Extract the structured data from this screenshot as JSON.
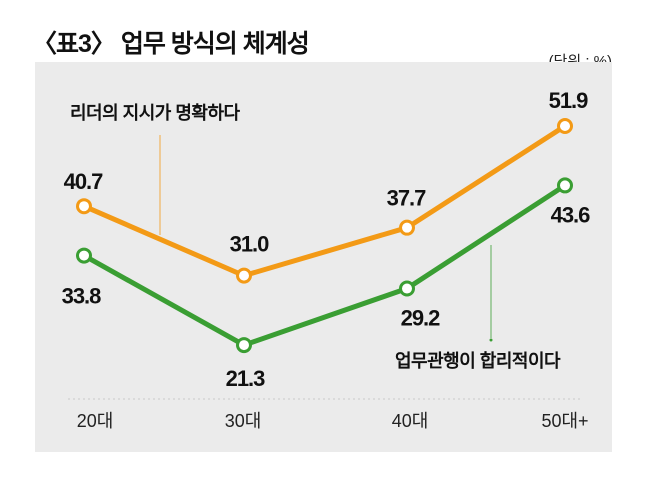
{
  "chart_data": {
    "type": "line",
    "title": "〈표3〉 업무 방식의 체계성",
    "unit_label": "(단위 : %)",
    "categories": [
      "20대",
      "30대",
      "40대",
      "50대+"
    ],
    "series": [
      {
        "name": "리더의 지시가 명확하다",
        "values": [
          40.7,
          31.0,
          37.7,
          51.9
        ],
        "labels": [
          "40.7",
          "31.0",
          "37.7",
          "51.9"
        ],
        "color": "#f39a16"
      },
      {
        "name": "업무관행이 합리적이다",
        "values": [
          33.8,
          21.3,
          29.2,
          43.6
        ],
        "labels": [
          "33.8",
          "21.3",
          "29.2",
          "43.6"
        ],
        "color": "#3a9e33"
      }
    ],
    "ylim": [
      0,
      60
    ],
    "grid": false,
    "background": "#ebebeb"
  }
}
